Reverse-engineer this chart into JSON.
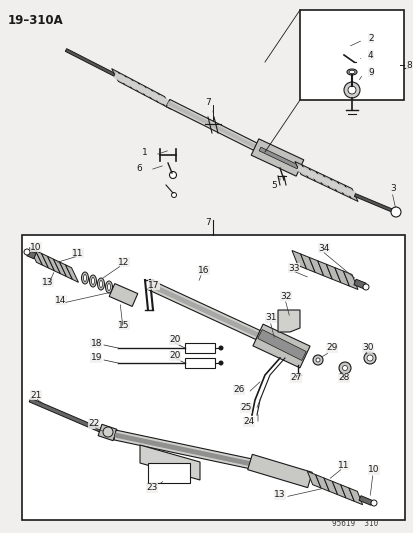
{
  "title": "19–310A",
  "stamp": "95619  310",
  "bg": "#f0efed",
  "lc": "#1a1a1a",
  "tc": "#1a1a1a",
  "white": "#ffffff",
  "gray_box": "#e8e8e6"
}
